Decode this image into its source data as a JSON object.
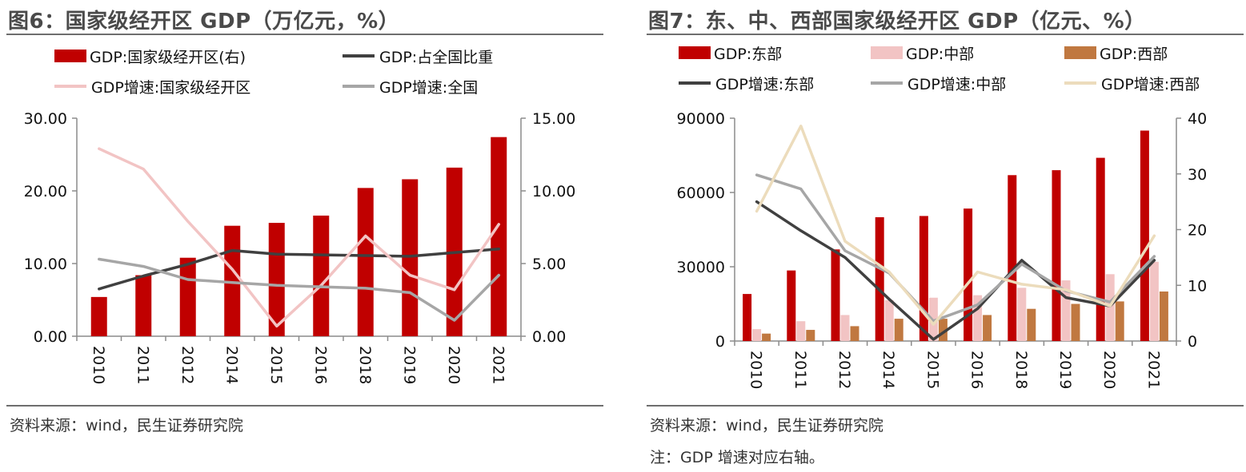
{
  "left": {
    "title": "图6：国家级经开区 GDP（万亿元，%）",
    "source": "资料来源：wind，民生证券研究院",
    "legend": [
      {
        "label": "GDP:国家级经开区(右)",
        "kind": "bar",
        "color": "#c00000"
      },
      {
        "label": "GDP:占全国比重",
        "kind": "line",
        "color": "#404040"
      },
      {
        "label": "GDP增速:国家级经开区",
        "kind": "line",
        "color": "#f2c4c4"
      },
      {
        "label": "GDP增速:全国",
        "kind": "line",
        "color": "#a6a6a6"
      }
    ],
    "chart_data": {
      "type": "bar",
      "categories": [
        "2010",
        "2011",
        "2012",
        "2014",
        "2015",
        "2016",
        "2018",
        "2019",
        "2020",
        "2021"
      ],
      "y_left": {
        "ticks": [
          "0.00",
          "10.00",
          "20.00",
          "30.00"
        ],
        "lim": [
          0,
          30
        ]
      },
      "y_right": {
        "ticks": [
          "0.00",
          "5.00",
          "10.00",
          "15.00"
        ],
        "lim": [
          0,
          15
        ]
      },
      "series": [
        {
          "name": "GDP:国家级经开区(右)",
          "type": "bar",
          "axis": "right",
          "color": "#c00000",
          "values": [
            2.7,
            4.2,
            5.4,
            7.6,
            7.8,
            8.3,
            10.2,
            10.8,
            11.6,
            13.7
          ]
        },
        {
          "name": "GDP:占全国比重",
          "type": "line",
          "axis": "left",
          "color": "#404040",
          "values": [
            6.5,
            8.3,
            9.9,
            11.8,
            11.3,
            11.2,
            11.1,
            11.0,
            11.5,
            12.0
          ]
        },
        {
          "name": "GDP增速:国家级经开区",
          "type": "line",
          "axis": "right",
          "color": "#f2c4c4",
          "values": [
            12.9,
            11.5,
            7.9,
            4.6,
            0.7,
            3.5,
            6.9,
            4.2,
            3.2,
            7.7
          ]
        },
        {
          "name": "GDP增速:全国",
          "type": "line",
          "axis": "right",
          "color": "#a6a6a6",
          "values": [
            5.3,
            4.8,
            3.9,
            3.7,
            3.5,
            3.4,
            3.3,
            3.0,
            1.1,
            4.2
          ]
        }
      ]
    }
  },
  "right": {
    "title": "图7：东、中、西部国家级经开区 GDP（亿元、%）",
    "source": "资料来源：wind，民生证券研究院",
    "note": "注：GDP 增速对应右轴。",
    "legend": [
      {
        "label": "GDP:东部",
        "kind": "bar",
        "color": "#c00000"
      },
      {
        "label": "GDP:中部",
        "kind": "bar",
        "color": "#f2c4c4"
      },
      {
        "label": "GDP:西部",
        "kind": "bar",
        "color": "#c07840"
      },
      {
        "label": "GDP增速:东部",
        "kind": "line",
        "color": "#404040"
      },
      {
        "label": "GDP增速:中部",
        "kind": "line",
        "color": "#a6a6a6"
      },
      {
        "label": "GDP增速:西部",
        "kind": "line",
        "color": "#ecdcbc"
      }
    ],
    "chart_data": {
      "type": "bar",
      "categories": [
        "2010",
        "2011",
        "2012",
        "2014",
        "2015",
        "2016",
        "2018",
        "2019",
        "2020",
        "2021"
      ],
      "y_left": {
        "ticks": [
          "0",
          "30000",
          "60000",
          "90000"
        ],
        "lim": [
          0,
          90000
        ]
      },
      "y_right": {
        "ticks": [
          "0",
          "10",
          "20",
          "30",
          "40"
        ],
        "lim": [
          0,
          40
        ]
      },
      "series": [
        {
          "name": "GDP:东部",
          "type": "bar",
          "axis": "left",
          "color": "#c00000",
          "values": [
            19000,
            28500,
            37000,
            50000,
            50500,
            53500,
            67000,
            69000,
            74000,
            85000
          ]
        },
        {
          "name": "GDP:中部",
          "type": "bar",
          "axis": "left",
          "color": "#f2c4c4",
          "values": [
            4800,
            8000,
            10500,
            16500,
            17500,
            18500,
            21500,
            24500,
            27000,
            32000
          ]
        },
        {
          "name": "GDP:西部",
          "type": "bar",
          "axis": "left",
          "color": "#c07840",
          "values": [
            3000,
            4500,
            6000,
            9000,
            9000,
            10500,
            13000,
            15000,
            16000,
            20000
          ]
        },
        {
          "name": "GDP增速:东部",
          "type": "line",
          "axis": "right",
          "color": "#404040",
          "values": [
            25.0,
            19.8,
            15.0,
            7.5,
            0.3,
            5.8,
            14.5,
            7.8,
            6.3,
            14.5
          ]
        },
        {
          "name": "GDP增速:中部",
          "type": "line",
          "axis": "right",
          "color": "#a6a6a6",
          "values": [
            29.8,
            27.3,
            16.2,
            12.2,
            3.6,
            6.5,
            13.8,
            9.0,
            7.0,
            15.2
          ]
        },
        {
          "name": "GDP增速:西部",
          "type": "line",
          "axis": "right",
          "color": "#ecdcbc",
          "values": [
            23.3,
            38.6,
            17.9,
            12.4,
            3.0,
            12.4,
            10.2,
            9.2,
            6.3,
            18.9
          ]
        }
      ]
    }
  }
}
